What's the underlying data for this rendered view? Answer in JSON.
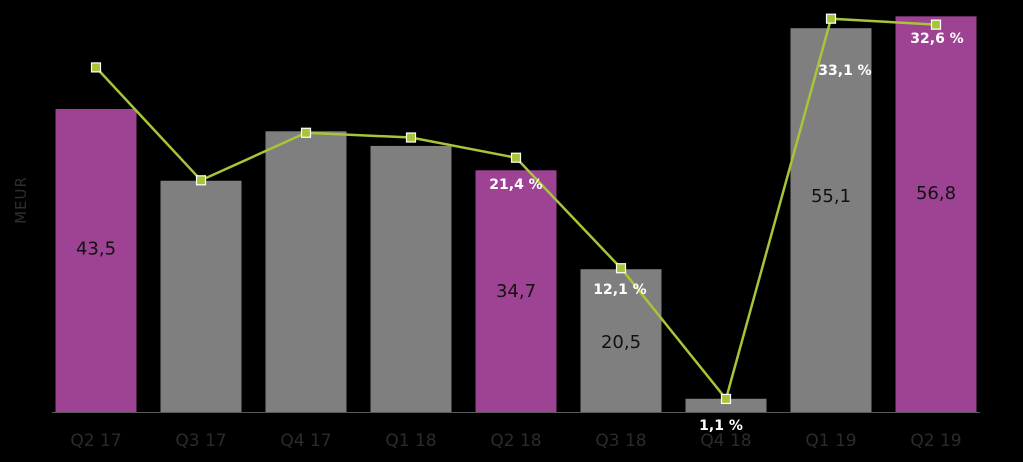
{
  "chart_data": {
    "type": "bar",
    "ylabel": "MEUR",
    "categories": [
      "Q2 17",
      "Q3 17",
      "Q4 17",
      "Q1 18",
      "Q2 18",
      "Q3 18",
      "Q4 18",
      "Q1 19",
      "Q2 19"
    ],
    "series": [
      {
        "type": "bar",
        "values": [
          43.5,
          33.2,
          40.3,
          38.2,
          34.7,
          20.5,
          1.9,
          55.1,
          56.8
        ],
        "value_labels": [
          "43,5",
          "",
          "",
          "",
          "34,7",
          "20,5",
          "",
          "55,1",
          "56,8"
        ],
        "colors": [
          "#9e4394",
          "#7f7f7f",
          "#7f7f7f",
          "#7f7f7f",
          "#9e4394",
          "#7f7f7f",
          "#7f7f7f",
          "#7f7f7f",
          "#9e4394"
        ]
      },
      {
        "type": "line",
        "values": [
          29.0,
          19.5,
          23.5,
          23.1,
          21.4,
          12.1,
          1.1,
          33.1,
          32.6
        ],
        "value_labels": [
          "",
          "",
          "",
          "",
          "21,4 %",
          "12,1 %",
          "1,1 %",
          "33,1 %",
          "32,6 %"
        ],
        "color": "#a6c539"
      }
    ],
    "ylim": [
      0,
      58
    ],
    "ylim_secondary": [
      0,
      34
    ],
    "grid": false,
    "legend": "none"
  },
  "colors": {
    "background": "#000000",
    "highlight_bar": "#9e4394",
    "bar": "#7f7f7f",
    "line": "#a6c539",
    "axis": "#5a5a5a"
  }
}
